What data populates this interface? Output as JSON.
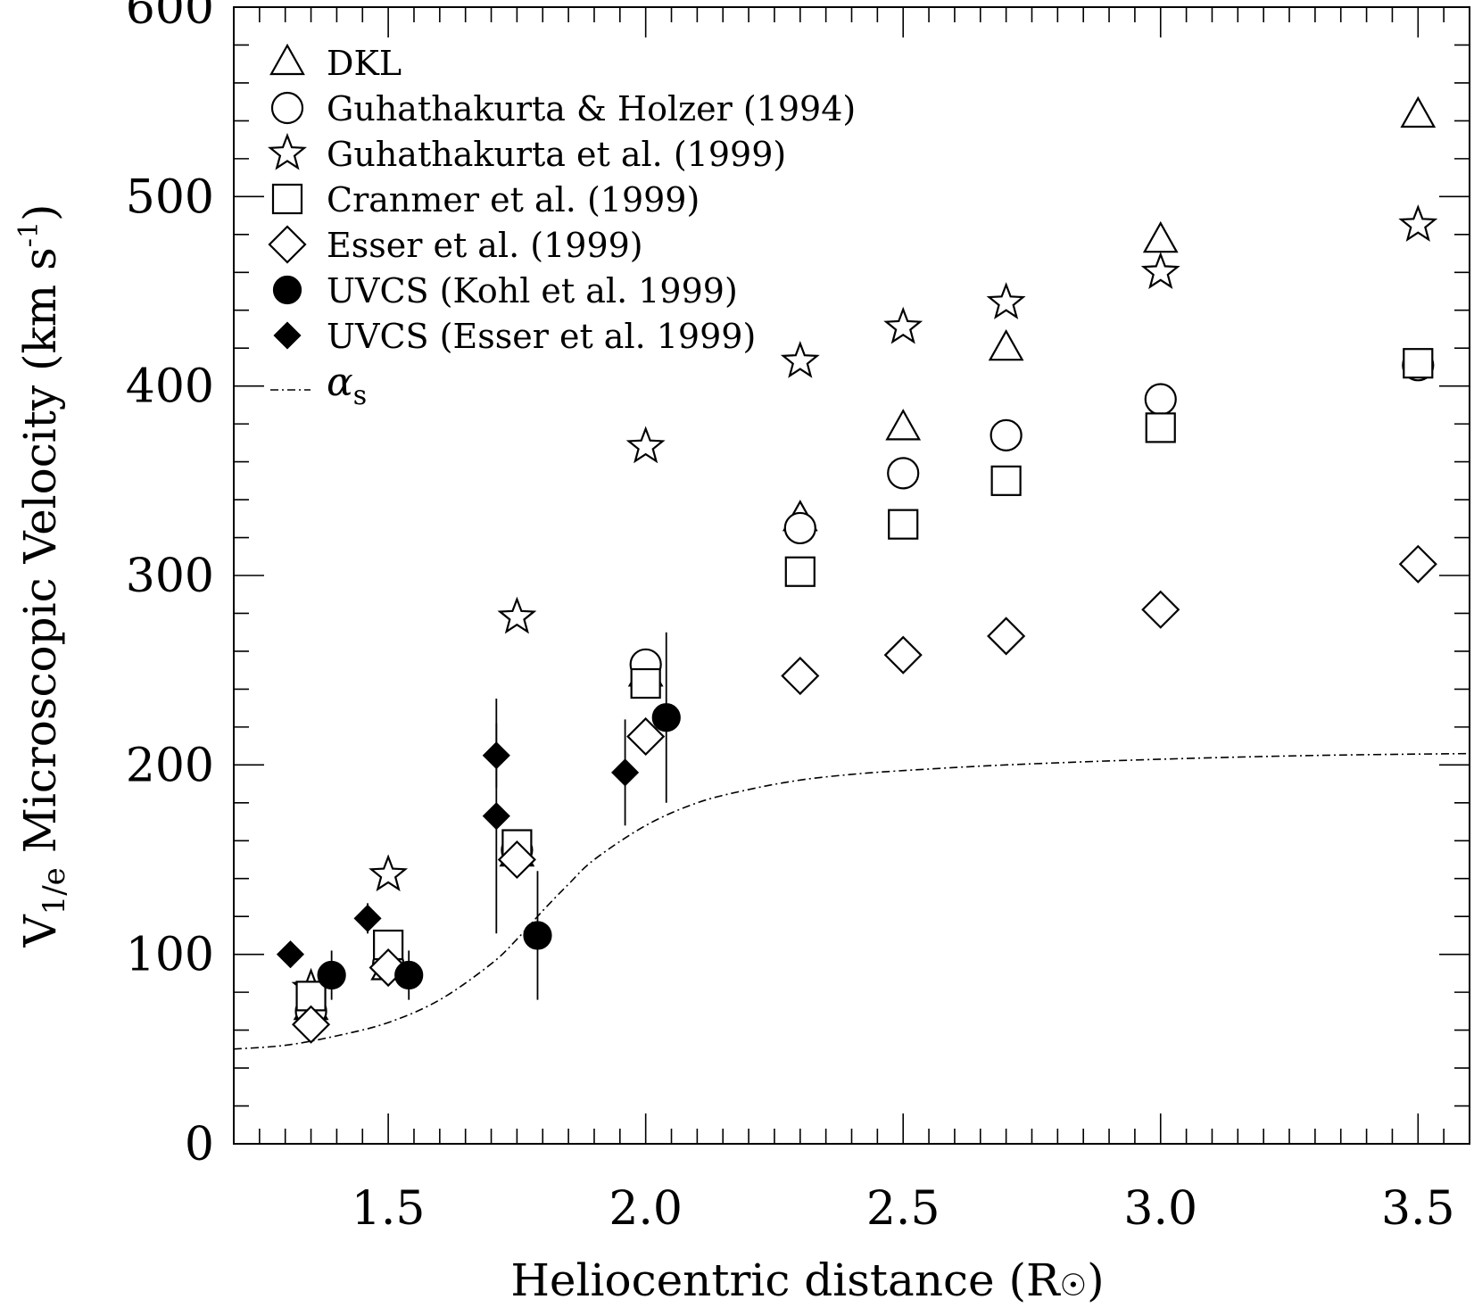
{
  "chart_data": {
    "type": "scatter",
    "title": "",
    "xlabel": "Heliocentric distance (R",
    "xlabel_suffix": ")",
    "ylabel": "V",
    "ylabel_sub": "1/e",
    "ylabel_main": " Microscopic Velocity (km s",
    "ylabel_sup": "-1",
    "ylabel_end": ")",
    "xlim": [
      1.2,
      3.6
    ],
    "ylim": [
      0,
      600
    ],
    "x_major_ticks": [
      1.5,
      2.0,
      2.5,
      3.0,
      3.5
    ],
    "x_tick_labels": [
      "1.5",
      "2.0",
      "2.5",
      "3.0",
      "3.5"
    ],
    "y_major_ticks": [
      0,
      100,
      200,
      300,
      400,
      500,
      600
    ],
    "y_tick_labels": [
      "0",
      "100",
      "200",
      "300",
      "400",
      "500",
      "600"
    ],
    "grid": false,
    "legend_position": "top-left",
    "series": [
      {
        "name": "DKL",
        "marker": "triangle",
        "filled": false,
        "x": [
          1.35,
          1.5,
          1.75,
          2.0,
          2.3,
          2.5,
          2.7,
          3.0,
          3.5
        ],
        "y": [
          72,
          93,
          153,
          248,
          330,
          378,
          420,
          477,
          543
        ]
      },
      {
        "name": "Guhathakurta & Holzer (1994)",
        "marker": "circle",
        "filled": false,
        "x": [
          1.35,
          1.5,
          1.75,
          2.0,
          2.3,
          2.5,
          2.7,
          3.0,
          3.5
        ],
        "y": [
          70,
          95,
          155,
          253,
          325,
          354,
          374,
          393,
          411
        ]
      },
      {
        "name": "Guhathakurta et al. (1999)",
        "marker": "star",
        "filled": false,
        "x": [
          1.35,
          1.5,
          1.75,
          2.0,
          2.3,
          2.5,
          2.7,
          3.0,
          3.5
        ],
        "y": [
          82,
          142,
          278,
          368,
          413,
          431,
          444,
          460,
          485
        ]
      },
      {
        "name": "Cranmer et al. (1999)",
        "marker": "square",
        "filled": false,
        "x": [
          1.35,
          1.5,
          1.75,
          2.0,
          2.3,
          2.5,
          2.7,
          3.0,
          3.5
        ],
        "y": [
          78,
          105,
          158,
          243,
          302,
          327,
          350,
          378,
          412
        ]
      },
      {
        "name": "Esser et al. (1999)",
        "marker": "diamond",
        "filled": false,
        "x": [
          1.35,
          1.5,
          1.75,
          2.0,
          2.3,
          2.5,
          2.7,
          3.0,
          3.5
        ],
        "y": [
          63,
          93,
          150,
          215,
          247,
          258,
          268,
          282,
          306
        ]
      },
      {
        "name": "UVCS (Kohl et al. 1999)",
        "marker": "circle",
        "filled": true,
        "x": [
          1.39,
          1.54,
          1.79,
          2.04
        ],
        "y": [
          89,
          89,
          110,
          225
        ],
        "err": [
          13,
          13,
          34,
          45
        ]
      },
      {
        "name": "UVCS (Esser et al. 1999)",
        "marker": "diamond",
        "filled": true,
        "x": [
          1.31,
          1.46,
          1.71,
          1.71,
          1.96
        ],
        "y": [
          100,
          119,
          173,
          205,
          196
        ],
        "err": [
          5,
          8,
          62,
          17,
          28
        ]
      },
      {
        "name": "α",
        "name_sub": "s",
        "marker": "dash-dot",
        "line": true,
        "x": [
          1.2,
          1.3,
          1.4,
          1.5,
          1.6,
          1.7,
          1.75,
          1.8,
          1.85,
          1.9,
          2.0,
          2.1,
          2.2,
          2.3,
          2.4,
          2.5,
          2.7,
          3.0,
          3.3,
          3.6
        ],
        "y": [
          50,
          52,
          57,
          64,
          76,
          95,
          108,
          123,
          137,
          150,
          168,
          180,
          187,
          192,
          195,
          197,
          200,
          203,
          205,
          206
        ]
      }
    ]
  }
}
